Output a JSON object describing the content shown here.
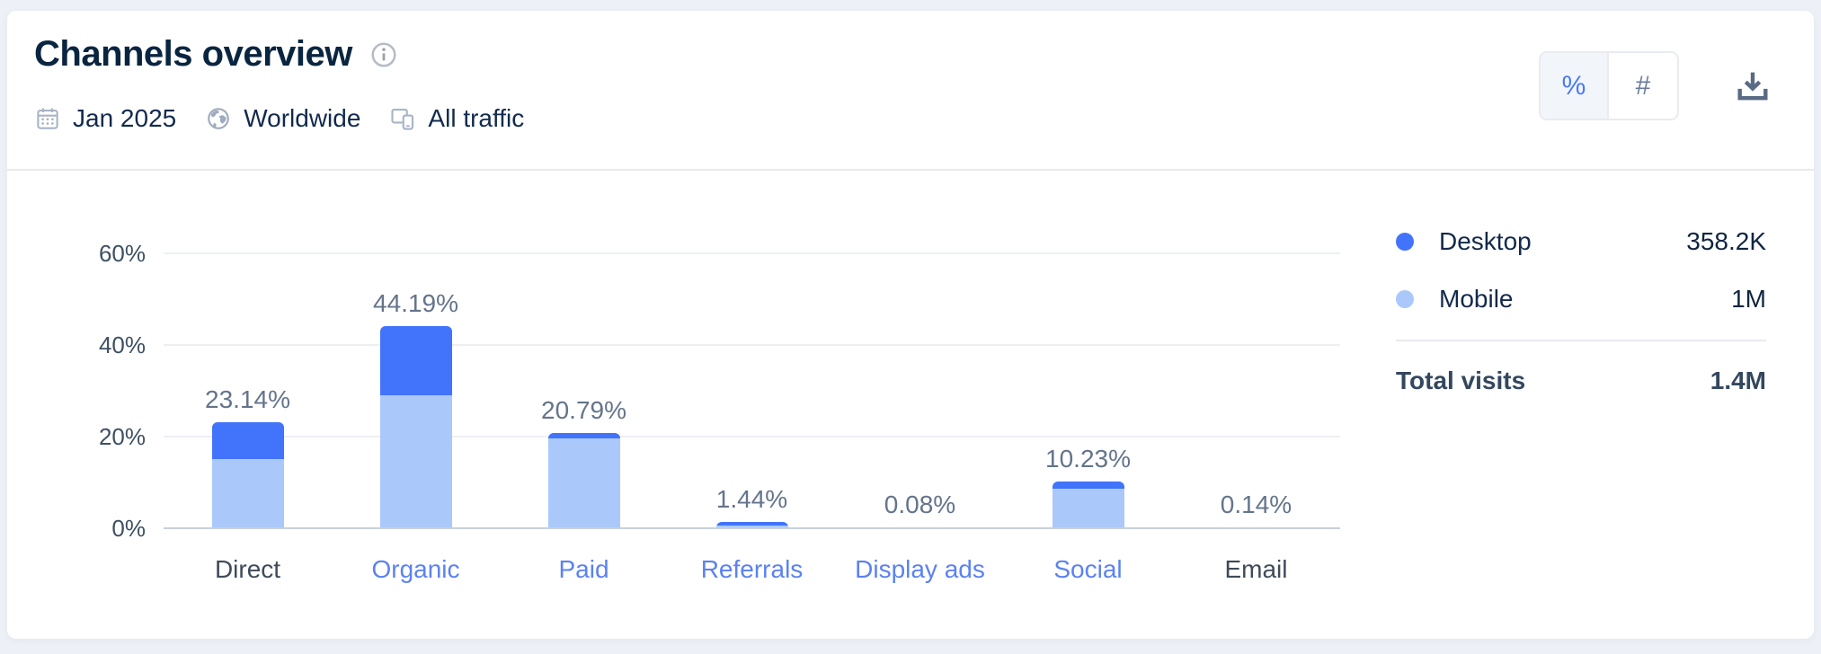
{
  "header": {
    "title": "Channels overview",
    "info_icon": "info-icon",
    "filters": [
      {
        "icon": "calendar-icon",
        "label": "Jan 2025"
      },
      {
        "icon": "globe-icon",
        "label": "Worldwide"
      },
      {
        "icon": "devices-icon",
        "label": "All traffic"
      }
    ],
    "toggle": {
      "percent_label": "%",
      "hash_label": "#",
      "active": "percent"
    },
    "download_icon": "download-icon"
  },
  "legend": {
    "items": [
      {
        "label": "Desktop",
        "value": "358.2K",
        "color": "#4273fb"
      },
      {
        "label": "Mobile",
        "value": "1M",
        "color": "#abc8fa"
      }
    ],
    "total_label": "Total visits",
    "total_value": "1.4M"
  },
  "chart_data": {
    "type": "bar",
    "stacked": true,
    "title": "Channels overview",
    "categories": [
      "Direct",
      "Organic",
      "Paid",
      "Referrals",
      "Display ads",
      "Social",
      "Email"
    ],
    "category_is_link": [
      false,
      true,
      true,
      true,
      true,
      true,
      false
    ],
    "totals": [
      23.14,
      44.19,
      20.79,
      1.44,
      0.08,
      10.23,
      0.14
    ],
    "total_labels": [
      "23.14%",
      "44.19%",
      "20.79%",
      "1.44%",
      "0.08%",
      "10.23%",
      "0.14%"
    ],
    "series": [
      {
        "name": "Desktop",
        "color": "#4273fb",
        "values": [
          8.0,
          15.1,
          1.2,
          0.8,
          0.0,
          1.6,
          0.0
        ]
      },
      {
        "name": "Mobile",
        "color": "#abc8fa",
        "values": [
          15.14,
          29.09,
          19.59,
          0.64,
          0.08,
          8.63,
          0.14
        ]
      }
    ],
    "yticks": [
      "0%",
      "20%",
      "40%",
      "60%"
    ],
    "ylim": [
      0,
      60
    ],
    "grid": true,
    "legend_position": "right",
    "colors": {
      "link": "#5b82f2",
      "category_text": "#3f4b5a",
      "value_label": "#64748b",
      "tick_label": "#3e5063"
    }
  }
}
